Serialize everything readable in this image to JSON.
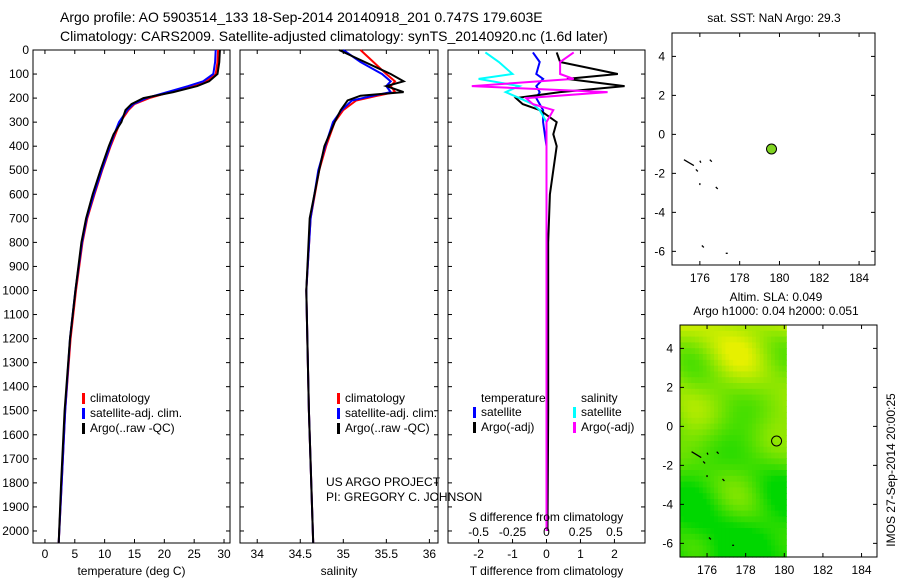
{
  "title": {
    "line1": "Argo profile: AO 5903514_133 18-Sep-2014 20140918_201 0.747S 179.603E",
    "line2": "Climatology: CARS2009. Satellite-adjusted climatology: synTS_20140920.nc (1.6d later)"
  },
  "colors": {
    "climatology": "#ff0000",
    "satellite": "#0000ff",
    "argo": "#000000",
    "sal_satellite": "#00ffff",
    "sal_argo": "#ff00ff",
    "argo_dot": "#7fd321"
  },
  "chart_data": [
    {
      "type": "line",
      "id": "temperature",
      "xlabel": "temperature (deg C)",
      "xlim": [
        -2,
        31
      ],
      "ylim": [
        0,
        2060
      ],
      "xticks": [
        "0",
        "5",
        "10",
        "15",
        "20",
        "25",
        "30"
      ],
      "xtickvals": [
        0,
        5,
        10,
        15,
        20,
        25,
        30
      ],
      "yticks": [
        "0",
        "100",
        "200",
        "300",
        "400",
        "500",
        "600",
        "700",
        "800",
        "900",
        "1000",
        "1100",
        "1200",
        "1300",
        "1400",
        "1500",
        "1600",
        "1700",
        "1800",
        "1900",
        "2000"
      ],
      "legend": [
        "climatology",
        "satellite-adj. clim.",
        "Argo(..raw -QC)"
      ],
      "depth": [
        0,
        50,
        100,
        130,
        150,
        175,
        200,
        225,
        250,
        300,
        350,
        400,
        500,
        600,
        700,
        800,
        1000,
        1200,
        1500,
        1800,
        2050
      ],
      "series": [
        {
          "name": "climatology",
          "values": [
            29,
            28.9,
            28.6,
            27,
            24.5,
            21,
            17.5,
            15,
            14,
            12.6,
            11.8,
            11,
            9.6,
            8.3,
            7.1,
            6.3,
            5.2,
            4.3,
            3.4,
            2.8,
            2.3
          ]
        },
        {
          "name": "satellite-adj. clim.",
          "values": [
            28.6,
            28.5,
            28.2,
            26.5,
            24,
            20.5,
            17,
            14.8,
            13.8,
            12.4,
            11.6,
            10.9,
            9.5,
            8.2,
            7,
            6.2,
            5.1,
            4.2,
            3.4,
            2.8,
            2.3
          ]
        },
        {
          "name": "Argo",
          "values": [
            29.3,
            29.2,
            28.9,
            27.5,
            25.5,
            21.5,
            16.5,
            14.5,
            13.5,
            12.8,
            11.5,
            10.7,
            9.3,
            8,
            6.9,
            6.1,
            5.1,
            4.2,
            3.3,
            2.7,
            2.3
          ]
        }
      ]
    },
    {
      "type": "line",
      "id": "salinity",
      "xlabel": "salinity",
      "xlim": [
        33.8,
        36.1
      ],
      "xticks": [
        "34",
        "34.5",
        "35",
        "35.5",
        "36"
      ],
      "xtickvals": [
        34,
        34.5,
        35,
        35.5,
        36
      ],
      "legend": [
        "climatology",
        "satellite-adj. clim.",
        "Argo(..raw -QC)"
      ],
      "annotation": [
        "US ARGO PROJECT",
        "PI: GREGORY C. JOHNSON"
      ],
      "depth": [
        0,
        50,
        100,
        130,
        150,
        175,
        190,
        210,
        250,
        300,
        400,
        500,
        700,
        1000,
        1500,
        2050
      ],
      "series": [
        {
          "name": "climatology",
          "values": [
            35.2,
            35.35,
            35.5,
            35.6,
            35.55,
            35.6,
            35.4,
            35.15,
            35.0,
            34.9,
            34.8,
            34.72,
            34.62,
            34.57,
            34.6,
            34.65
          ]
        },
        {
          "name": "satellite-adj. clim.",
          "values": [
            35.0,
            35.2,
            35.45,
            35.55,
            35.5,
            35.55,
            35.35,
            35.1,
            34.98,
            34.88,
            34.79,
            34.71,
            34.62,
            34.57,
            34.6,
            34.65
          ]
        },
        {
          "name": "Argo",
          "values": [
            34.95,
            35.25,
            35.55,
            35.7,
            35.5,
            35.7,
            35.2,
            35.05,
            34.97,
            34.9,
            34.78,
            34.72,
            34.61,
            34.57,
            34.6,
            34.65
          ]
        }
      ]
    },
    {
      "type": "line",
      "id": "difference",
      "xlabel": "T difference from climatology",
      "xlabel2": "S difference from climatology",
      "xlim": [
        -2.9,
        2.9
      ],
      "xticks": [
        "-2",
        "-1",
        "0",
        "1",
        "2"
      ],
      "xtickvals": [
        -2,
        -1,
        0,
        1,
        2
      ],
      "xticks2": [
        "-0.5",
        "-0.25",
        "0",
        "0.25",
        "0.5"
      ],
      "legend_headers": [
        "temperature",
        "salinity"
      ],
      "legend": [
        "satellite",
        "Argo(-adj)",
        "satellite",
        "Argo(-adj)"
      ],
      "depth": [
        10,
        50,
        100,
        120,
        150,
        175,
        200,
        225,
        250,
        300,
        350,
        400,
        500,
        600,
        800,
        1000,
        1500,
        2000
      ],
      "series": [
        {
          "name": "T satellite",
          "values": [
            -0.4,
            -0.2,
            -0.3,
            -0.1,
            -0.3,
            -0.2,
            -0.3,
            -0.2,
            -0.1,
            -0.1,
            -0.05,
            0,
            0,
            0,
            0,
            0,
            0,
            0
          ]
        },
        {
          "name": "T Argo",
          "values": [
            0.3,
            0.4,
            2.1,
            0.6,
            2.3,
            0.4,
            -0.9,
            -0.7,
            -0.2,
            0.3,
            0.2,
            0.3,
            0.2,
            0.1,
            0.05,
            0.05,
            0.05,
            0.03
          ]
        },
        {
          "name": "S satellite",
          "values": [
            -0.45,
            -0.35,
            -0.25,
            -0.5,
            -0.2,
            -0.3,
            -0.2,
            -0.1,
            -0.05,
            0,
            0,
            0,
            0,
            0,
            0,
            0,
            0,
            0
          ]
        },
        {
          "name": "S Argo",
          "values": [
            0.2,
            0.1,
            0.1,
            0.2,
            -0.55,
            0.45,
            -0.15,
            -0.1,
            0.05,
            0,
            0,
            0,
            0,
            0,
            0,
            0,
            0,
            0
          ]
        }
      ]
    },
    {
      "type": "scatter",
      "id": "sst_map",
      "title": "sat. SST: NaN Argo: 29.3",
      "xlim": [
        174.6,
        184.8
      ],
      "ylim": [
        -6.7,
        5.2
      ],
      "xticks": [
        "176",
        "178",
        "180",
        "182",
        "184"
      ],
      "yticks": [
        "4",
        "2",
        "0",
        "-2",
        "-4",
        "-6"
      ],
      "argo_position": [
        179.6,
        -0.75
      ]
    },
    {
      "type": "heatmap",
      "id": "sla_map",
      "title1": "Altim. SLA: 0.049",
      "title2": "Argo h1000: 0.04 h2000: 0.051",
      "xlim": [
        174.6,
        184.8
      ],
      "ylim": [
        -6.7,
        5.2
      ],
      "data_xlim": [
        174.6,
        180.1
      ],
      "xticks": [
        "176",
        "178",
        "180",
        "182",
        "184"
      ],
      "yticks": [
        "4",
        "2",
        "0",
        "-2",
        "-4",
        "-6"
      ],
      "argo_position": [
        179.6,
        -0.75
      ]
    }
  ],
  "stamp": "IMOS 27-Sep-2014 20:00:25"
}
